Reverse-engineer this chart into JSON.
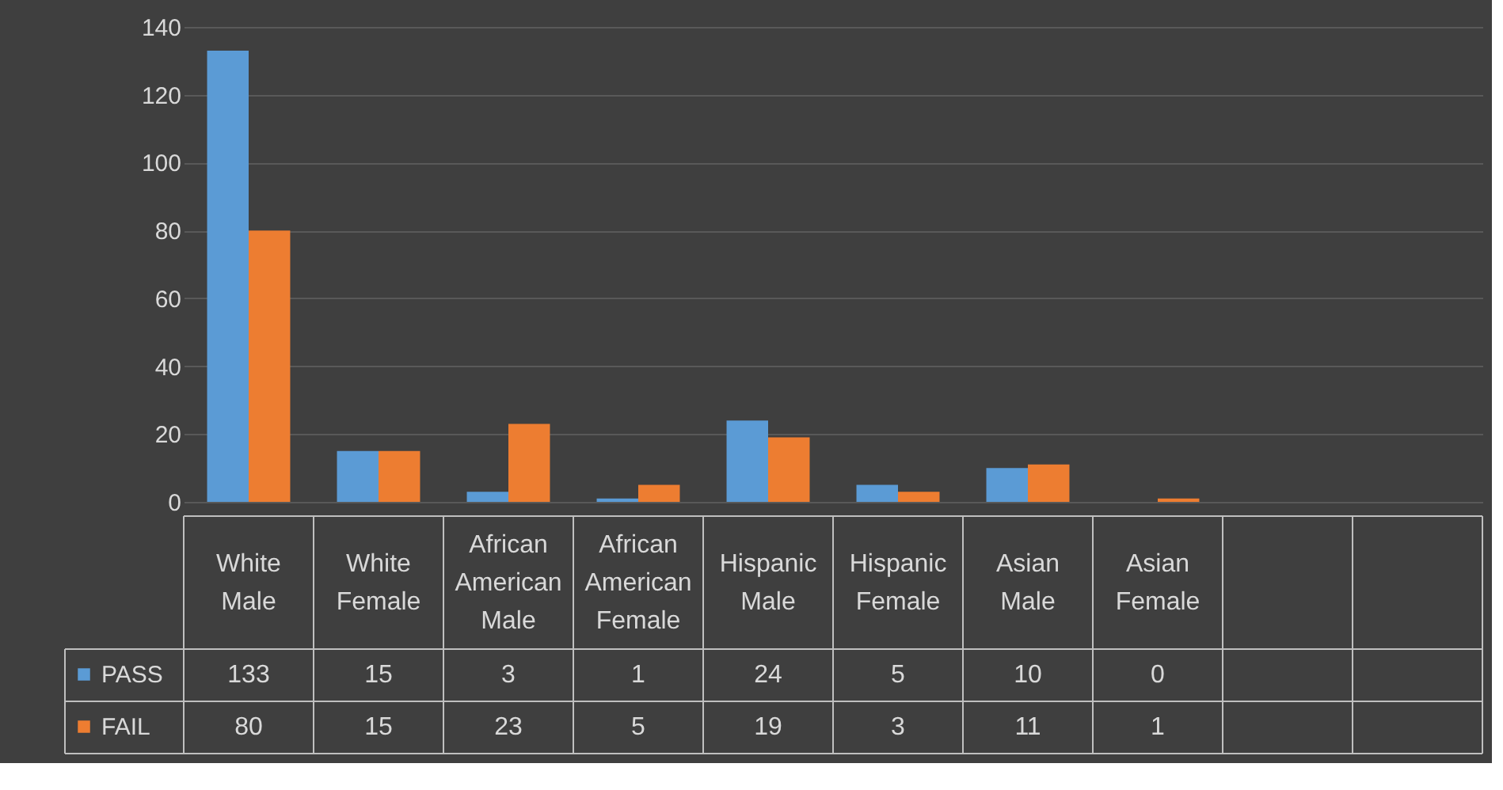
{
  "chart_data": {
    "type": "bar",
    "categories": [
      "White Male",
      "White Female",
      "African American Male",
      "African American Female",
      "Hispanic Male",
      "Hispanic Female",
      "Asian Male",
      "Asian Female",
      null,
      null
    ],
    "series": [
      {
        "name": "PASS",
        "color": "#5b9bd5",
        "values": [
          133,
          15,
          3,
          1,
          24,
          5,
          10,
          0,
          null,
          null
        ]
      },
      {
        "name": "FAIL",
        "color": "#ed7d31",
        "values": [
          80,
          15,
          23,
          5,
          19,
          3,
          11,
          1,
          null,
          null
        ]
      }
    ],
    "ylim": [
      0,
      140
    ],
    "yticks": [
      0,
      20,
      40,
      60,
      80,
      100,
      120,
      140
    ],
    "grid": "y",
    "data_labels": true,
    "legend": "bottom left"
  }
}
